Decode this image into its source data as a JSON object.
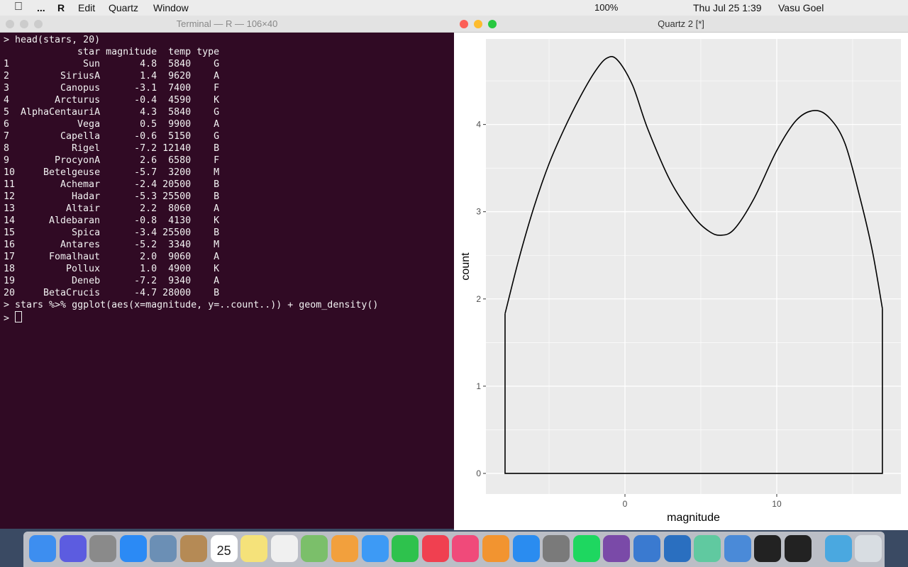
{
  "menubar": {
    "app": "R",
    "items": [
      "Edit",
      "Quartz",
      "Window"
    ],
    "battery": "100%",
    "clock": "Thu Jul 25  1:39",
    "user": "Vasu Goel"
  },
  "terminal": {
    "title": "Terminal — R — 106×40",
    "command1": "> head(stars, 20)",
    "columns": [
      "star",
      "magnitude",
      "temp",
      "type"
    ],
    "rows": [
      [
        "1",
        "Sun",
        "4.8",
        "5840",
        "G"
      ],
      [
        "2",
        "SiriusA",
        "1.4",
        "9620",
        "A"
      ],
      [
        "3",
        "Canopus",
        "-3.1",
        "7400",
        "F"
      ],
      [
        "4",
        "Arcturus",
        "-0.4",
        "4590",
        "K"
      ],
      [
        "5",
        "AlphaCentauriA",
        "4.3",
        "5840",
        "G"
      ],
      [
        "6",
        "Vega",
        "0.5",
        "9900",
        "A"
      ],
      [
        "7",
        "Capella",
        "-0.6",
        "5150",
        "G"
      ],
      [
        "8",
        "Rigel",
        "-7.2",
        "12140",
        "B"
      ],
      [
        "9",
        "ProcyonA",
        "2.6",
        "6580",
        "F"
      ],
      [
        "10",
        "Betelgeuse",
        "-5.7",
        "3200",
        "M"
      ],
      [
        "11",
        "Achemar",
        "-2.4",
        "20500",
        "B"
      ],
      [
        "12",
        "Hadar",
        "-5.3",
        "25500",
        "B"
      ],
      [
        "13",
        "Altair",
        "2.2",
        "8060",
        "A"
      ],
      [
        "14",
        "Aldebaran",
        "-0.8",
        "4130",
        "K"
      ],
      [
        "15",
        "Spica",
        "-3.4",
        "25500",
        "B"
      ],
      [
        "16",
        "Antares",
        "-5.2",
        "3340",
        "M"
      ],
      [
        "17",
        "Fomalhaut",
        "2.0",
        "9060",
        "A"
      ],
      [
        "18",
        "Pollux",
        "1.0",
        "4900",
        "K"
      ],
      [
        "19",
        "Deneb",
        "-7.2",
        "9340",
        "A"
      ],
      [
        "20",
        "BetaCrucis",
        "-4.7",
        "28000",
        "B"
      ]
    ],
    "command2": "> stars %>% ggplot(aes(x=magnitude, y=..count..)) + geom_density()",
    "prompt": ">"
  },
  "quartz": {
    "title": "Quartz 2 [*]"
  },
  "chart_data": {
    "type": "line",
    "x_label": "magnitude",
    "y_label": "count",
    "x": [
      -7.9,
      -7,
      -6,
      -5,
      -4,
      -3,
      -2,
      -1.2,
      -0.5,
      0.5,
      1.5,
      3,
      4.5,
      5.5,
      6.3,
      7.2,
      8.5,
      10,
      11.3,
      12.5,
      13.5,
      14.5,
      15.5,
      16.3,
      16.96
    ],
    "series": [
      {
        "color": "#000000",
        "values": [
          1.83,
          2.45,
          3.05,
          3.55,
          3.95,
          4.3,
          4.6,
          4.76,
          4.74,
          4.45,
          3.95,
          3.35,
          2.95,
          2.78,
          2.73,
          2.8,
          3.15,
          3.7,
          4.05,
          4.16,
          4.07,
          3.78,
          3.15,
          2.55,
          1.89
        ]
      }
    ],
    "xlim": [
      -9.16,
      18.18
    ],
    "ylim": [
      -0.236,
      4.98
    ],
    "xticks": [
      0,
      10
    ],
    "yticks": [
      0,
      1,
      2,
      3,
      4
    ],
    "xminor": [
      -5,
      5,
      15
    ],
    "yminor": [
      0.5,
      1.5,
      2.5,
      3.5,
      4.5
    ],
    "grid": true,
    "panel_color": "#ebebeb"
  },
  "dock": {
    "calendar_day": "25"
  }
}
